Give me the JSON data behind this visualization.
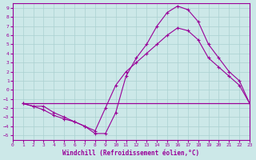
{
  "xlabel": "Windchill (Refroidissement éolien,°C)",
  "background_color": "#cce8e8",
  "grid_color": "#aad0d0",
  "line_color": "#990099",
  "xlim": [
    0,
    23
  ],
  "ylim": [
    -5.5,
    9.5
  ],
  "xticks": [
    0,
    1,
    2,
    3,
    4,
    5,
    6,
    7,
    8,
    9,
    10,
    11,
    12,
    13,
    14,
    15,
    16,
    17,
    18,
    19,
    20,
    21,
    22,
    23
  ],
  "yticks": [
    -5,
    -4,
    -3,
    -2,
    -1,
    0,
    1,
    2,
    3,
    4,
    5,
    6,
    7,
    8,
    9
  ],
  "curve1_x": [
    1,
    2,
    3,
    4,
    5,
    6,
    7,
    8,
    9,
    10,
    11,
    12,
    13,
    14,
    15,
    16,
    17,
    18,
    19,
    20,
    21,
    22,
    23
  ],
  "curve1_y": [
    -1.5,
    -1.8,
    -2.2,
    -2.8,
    -3.2,
    -3.5,
    -4.0,
    -4.8,
    -4.8,
    -2.5,
    1.5,
    3.5,
    5.0,
    7.0,
    8.5,
    9.2,
    8.8,
    7.5,
    5.0,
    3.5,
    2.0,
    1.0,
    -1.5
  ],
  "curve2_x": [
    1,
    2,
    3,
    4,
    5,
    6,
    7,
    8,
    9,
    10,
    11,
    12,
    13,
    14,
    15,
    16,
    17,
    18,
    19,
    20,
    21,
    22,
    23
  ],
  "curve2_y": [
    -1.5,
    -1.8,
    -1.8,
    -2.5,
    -3.0,
    -3.5,
    -4.0,
    -4.5,
    -2.0,
    0.5,
    2.0,
    3.0,
    4.0,
    5.0,
    6.0,
    6.8,
    6.5,
    5.5,
    3.5,
    2.5,
    1.5,
    0.5,
    -1.5
  ],
  "line3_x": [
    1,
    23
  ],
  "line3_y": [
    -1.5,
    -1.5
  ],
  "line4_x": [
    1,
    9,
    23
  ],
  "line4_y": [
    -1.5,
    -1.5,
    -1.5
  ]
}
